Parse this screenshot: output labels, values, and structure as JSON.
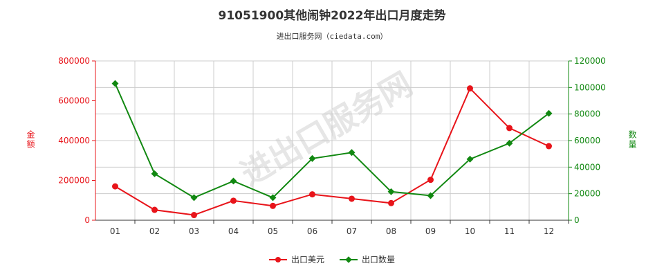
{
  "title": "91051900其他闹钟2022年出口月度走势",
  "subtitle": "进出口服务网（ciedata.com）",
  "watermark": "进出口服务网",
  "colors": {
    "amount": "#e8141a",
    "quantity": "#118811",
    "grid": "#cccccc",
    "axis": "#333333"
  },
  "chart_data": {
    "type": "line",
    "categories": [
      "01",
      "02",
      "03",
      "04",
      "05",
      "06",
      "07",
      "08",
      "09",
      "10",
      "11",
      "12"
    ],
    "left_axis": {
      "label": "金额",
      "ylim": [
        0,
        800000
      ],
      "ticks": [
        "0",
        "200000",
        "400000",
        "600000",
        "800000"
      ]
    },
    "right_axis": {
      "label": "数量",
      "ylim": [
        0,
        120000
      ],
      "ticks": [
        "0",
        "20000",
        "40000",
        "60000",
        "80000",
        "100000",
        "120000"
      ]
    },
    "series": [
      {
        "name": "出口美元",
        "axis": "left",
        "marker": "circle",
        "values": [
          170000,
          52000,
          26000,
          98000,
          72000,
          130000,
          108000,
          86000,
          203000,
          662000,
          463000,
          372000
        ]
      },
      {
        "name": "出口数量",
        "axis": "right",
        "marker": "diamond",
        "values": [
          103000,
          35000,
          17000,
          29500,
          17000,
          46500,
          51000,
          21500,
          18500,
          46000,
          58000,
          80500
        ]
      }
    ],
    "grid": true,
    "legend_position": "bottom"
  }
}
